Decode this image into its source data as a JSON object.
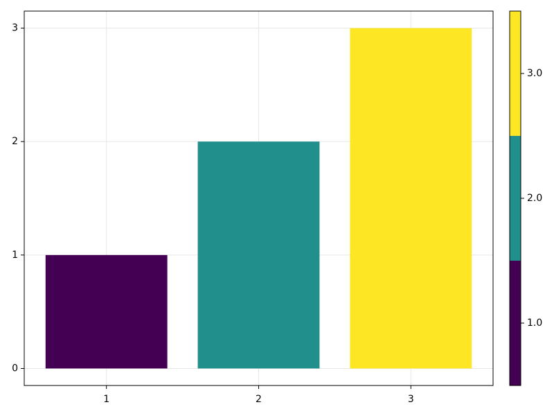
{
  "chart_data": {
    "type": "bar",
    "x": [
      1,
      2,
      3
    ],
    "values": [
      1,
      2,
      3
    ],
    "colors": [
      "#440154",
      "#21908d",
      "#fde725"
    ],
    "bar_width": 0.8,
    "xlim": [
      0.46,
      3.54
    ],
    "ylim": [
      -0.15,
      3.15
    ],
    "xticks": [
      1,
      2,
      3
    ],
    "yticks": [
      0,
      1,
      2,
      3
    ],
    "grid": true,
    "colorbar": {
      "lim": [
        0.5,
        3.5
      ],
      "ticks": [
        {
          "value": 1,
          "label": "1.0"
        },
        {
          "value": 2,
          "label": "2.0"
        },
        {
          "value": 3,
          "label": "3.0"
        }
      ]
    }
  }
}
